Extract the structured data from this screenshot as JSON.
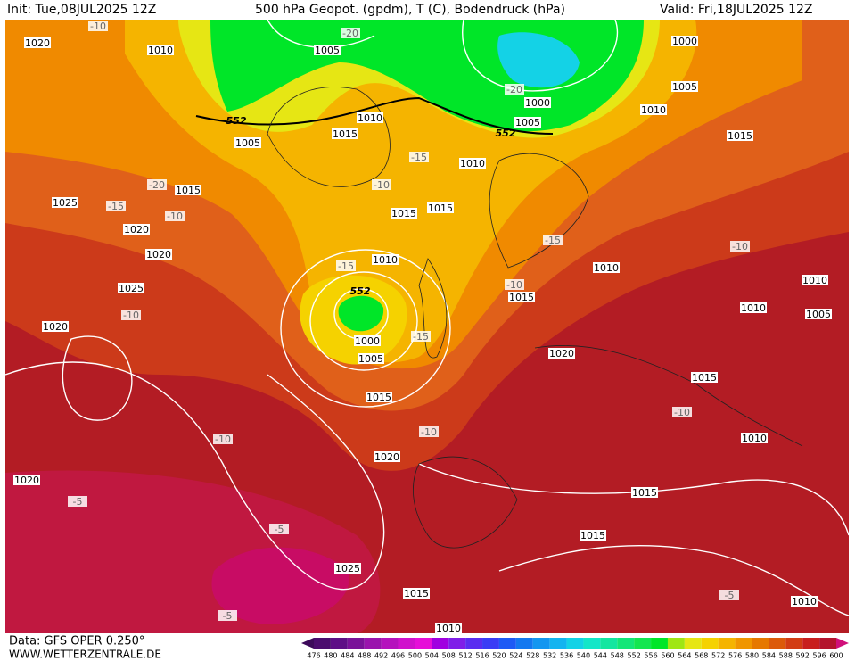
{
  "header": {
    "init": "Init: Tue,08JUL2025 12Z",
    "title": "500 hPa Geopot. (gpdm), T (C), Bodendruck (hPa)",
    "valid": "Valid: Fri,18JUL2025 12Z"
  },
  "footer": {
    "data": "Data: GFS OPER 0.250°",
    "site": "WWW.WETTERZENTRALE.DE"
  },
  "colorbar": {
    "ticks": [
      476,
      480,
      484,
      488,
      492,
      496,
      500,
      504,
      508,
      512,
      516,
      520,
      524,
      528,
      532,
      536,
      540,
      544,
      548,
      552,
      556,
      560,
      564,
      568,
      572,
      576,
      580,
      584,
      588,
      592,
      596,
      600
    ],
    "colors": [
      "#3c0a5a",
      "#4b0c6e",
      "#5e0f86",
      "#7a1299",
      "#9a14ad",
      "#b512bd",
      "#d010cc",
      "#e60ed8",
      "#a000e0",
      "#7f1ee8",
      "#5a2df0",
      "#3a3cf5",
      "#1e5af5",
      "#1478f0",
      "#1496f0",
      "#14b4f0",
      "#14d2e6",
      "#14e6c8",
      "#14e6a0",
      "#14e678",
      "#14e650",
      "#00e628",
      "#a0e614",
      "#e6e614",
      "#f5d200",
      "#f5b400",
      "#f09600",
      "#e67800",
      "#dc5a0a",
      "#d23c14",
      "#c81e1e",
      "#b4142d",
      "#d0107a"
    ]
  },
  "map": {
    "pressure_labels": [
      "1020",
      "1010",
      "1005",
      "1000",
      "1005",
      "1010",
      "1015",
      "1010",
      "1015",
      "1005",
      "1010",
      "1015",
      "1025",
      "1015",
      "1015",
      "1020",
      "1020",
      "1010",
      "1010",
      "1025",
      "1015",
      "1010",
      "1010",
      "1005",
      "1020",
      "1000",
      "1005",
      "1020",
      "1015",
      "1015",
      "1010",
      "1020",
      "1020",
      "1015",
      "1015",
      "1025",
      "1015",
      "1010",
      "1010",
      "1000",
      "1005"
    ],
    "temperature_labels": [
      "-10",
      "-20",
      "-20",
      "-15",
      "-10",
      "-20",
      "-15",
      "-10",
      "-15",
      "-10",
      "-15",
      "-10",
      "-10",
      "-15",
      "-10",
      "-10",
      "-10",
      "-5",
      "-5",
      "-5",
      "-5"
    ],
    "geopotential_labels": [
      "552",
      "552",
      "552"
    ]
  }
}
